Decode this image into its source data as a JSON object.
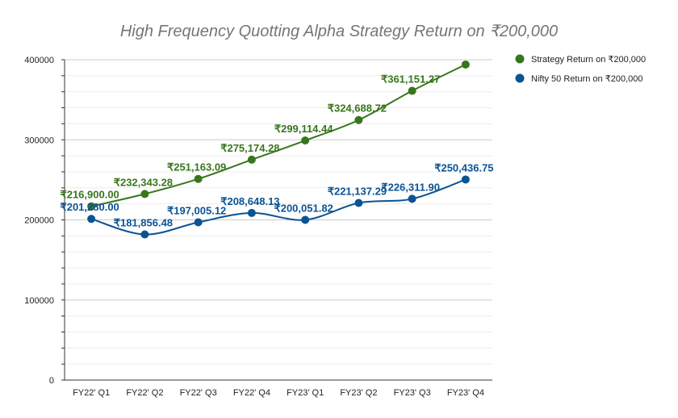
{
  "chart_data": {
    "type": "line",
    "title": "High Frequency Quotting Alpha Strategy Return on ₹200,000",
    "xlabel": "",
    "ylabel": "",
    "categories": [
      "FY22' Q1",
      "FY22' Q2",
      "FY22' Q3",
      "FY22' Q4",
      "FY23' Q1",
      "FY23' Q2",
      "FY23' Q3",
      "FY23' Q4"
    ],
    "ylim": [
      0,
      400000
    ],
    "yticks": [
      0,
      100000,
      200000,
      300000,
      400000
    ],
    "ytick_labels": [
      "0",
      "100000",
      "200000",
      "300000",
      "400000"
    ],
    "grid": true,
    "legend_position": "right",
    "series": [
      {
        "name": "Strategy Return on ₹200,000",
        "color": "#38761d",
        "values": [
          216900.0,
          232343.28,
          251163.09,
          275174.28,
          299114.44,
          324688.72,
          361151.27,
          394000
        ],
        "labels": [
          "₹216,900.00",
          "₹232,343.28",
          "₹251,163.09",
          "₹275,174.28",
          "₹299,114.44",
          "₹324,688.72",
          "₹361,151.27",
          ""
        ]
      },
      {
        "name": "Nifty 50 Return on ₹200,000",
        "color": "#0b5394",
        "values": [
          201280.0,
          181856.48,
          197005.12,
          208648.13,
          200051.82,
          221137.29,
          226311.9,
          250436.75
        ],
        "labels": [
          "₹201,280.00",
          "₹181,856.48",
          "₹197,005.12",
          "₹208,648.13",
          "₹200,051.82",
          "₹221,137.29",
          "₹226,311.90",
          "₹250,436.75"
        ]
      }
    ]
  }
}
